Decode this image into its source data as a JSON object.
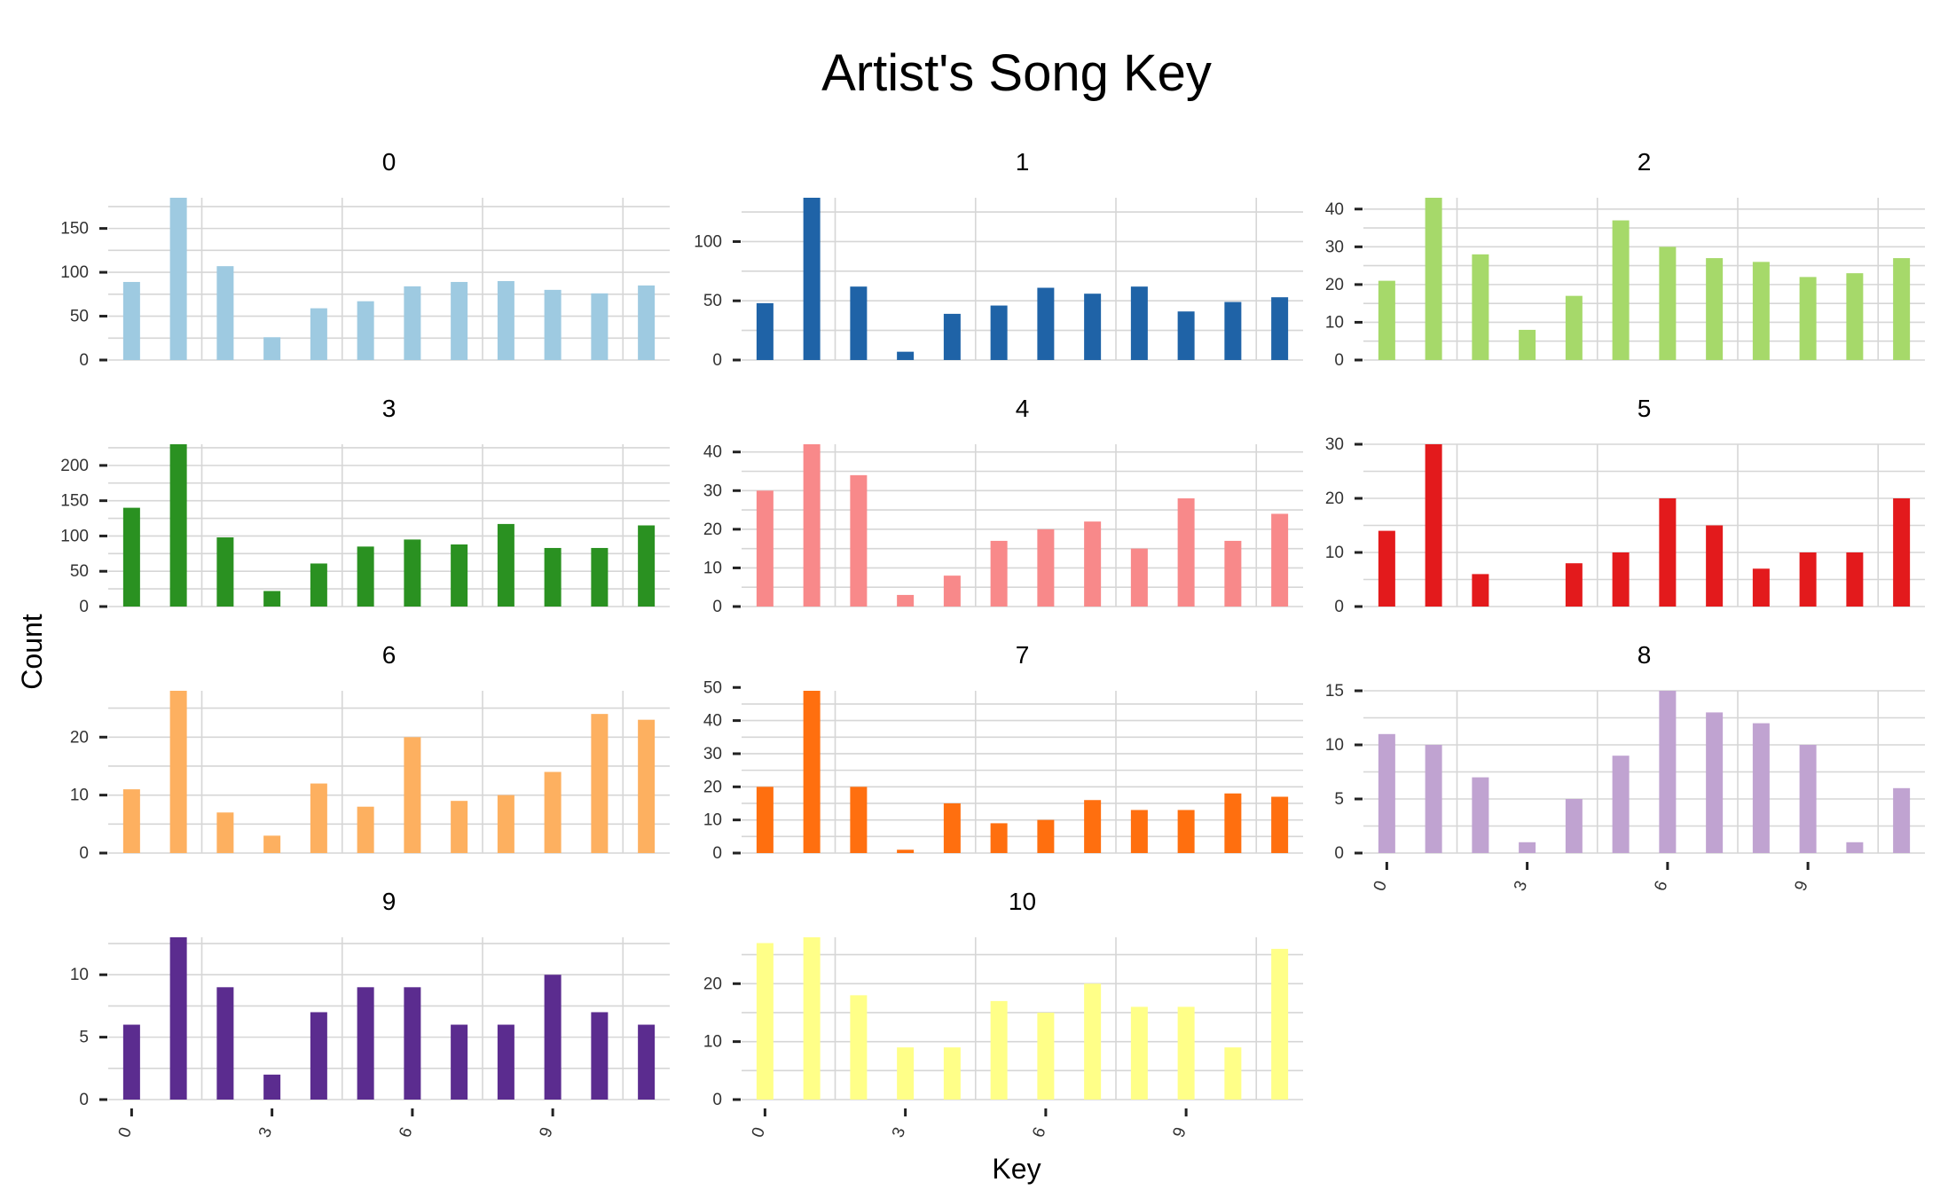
{
  "chart_data": {
    "type": "bar",
    "title": "Artist's Song Key",
    "xlabel": "Key",
    "ylabel": "Count",
    "x_ticks": [
      0,
      3,
      6,
      9
    ],
    "x_range": [
      -0.5,
      11.5
    ],
    "grid": true,
    "legend": "none",
    "categories": [
      0,
      1,
      2,
      3,
      4,
      5,
      6,
      7,
      8,
      9,
      10,
      11
    ],
    "panels": [
      {
        "name": "0",
        "color": "#9ecae1",
        "ylim": [
          0,
          185
        ],
        "yticks": [
          0,
          50,
          100,
          150
        ],
        "values": [
          89,
          185,
          107,
          26,
          59,
          67,
          84,
          89,
          90,
          80,
          76,
          85
        ]
      },
      {
        "name": "1",
        "color": "#1f63a7",
        "ylim": [
          0,
          137
        ],
        "yticks": [
          0,
          50,
          100
        ],
        "values": [
          48,
          137,
          62,
          7,
          39,
          46,
          61,
          56,
          62,
          41,
          49,
          53
        ]
      },
      {
        "name": "2",
        "color": "#a6d96a",
        "ylim": [
          0,
          43
        ],
        "yticks": [
          0,
          10,
          20,
          30,
          40
        ],
        "values": [
          21,
          43,
          28,
          8,
          17,
          37,
          30,
          27,
          26,
          22,
          23,
          27
        ]
      },
      {
        "name": "3",
        "color": "#2a9121",
        "ylim": [
          0,
          230
        ],
        "yticks": [
          0,
          50,
          100,
          150,
          200
        ],
        "values": [
          140,
          230,
          98,
          22,
          61,
          85,
          95,
          88,
          117,
          83,
          83,
          115
        ]
      },
      {
        "name": "4",
        "color": "#f8898a",
        "ylim": [
          0,
          42
        ],
        "yticks": [
          0,
          10,
          20,
          30,
          40
        ],
        "values": [
          30,
          42,
          34,
          3,
          8,
          17,
          20,
          22,
          15,
          28,
          17,
          24
        ]
      },
      {
        "name": "5",
        "color": "#e31a1c",
        "ylim": [
          0,
          30
        ],
        "yticks": [
          0,
          10,
          20,
          30
        ],
        "values": [
          14,
          30,
          6,
          0,
          8,
          10,
          20,
          15,
          7,
          10,
          10,
          20
        ]
      },
      {
        "name": "6",
        "color": "#fdb060",
        "ylim": [
          0,
          28
        ],
        "yticks": [
          0,
          10,
          20
        ],
        "values": [
          11,
          28,
          7,
          3,
          12,
          8,
          20,
          9,
          10,
          14,
          24,
          23
        ]
      },
      {
        "name": "7",
        "color": "#ff6f0f",
        "ylim": [
          0,
          49
        ],
        "yticks": [
          0,
          10,
          20,
          30,
          40,
          50
        ],
        "values": [
          20,
          49,
          20,
          1,
          15,
          9,
          10,
          16,
          13,
          13,
          18,
          17
        ]
      },
      {
        "name": "8",
        "color": "#c0a3d1",
        "ylim": [
          0,
          15
        ],
        "yticks": [
          0,
          5,
          10,
          15
        ],
        "values": [
          11,
          10,
          7,
          1,
          5,
          9,
          15,
          13,
          12,
          10,
          1,
          6
        ]
      },
      {
        "name": "9",
        "color": "#5b2c8f",
        "ylim": [
          0,
          13
        ],
        "yticks": [
          0,
          5,
          10
        ],
        "values": [
          6,
          13,
          9,
          2,
          7,
          9,
          9,
          6,
          6,
          10,
          7,
          6
        ]
      },
      {
        "name": "10",
        "color": "#ffff88",
        "ylim": [
          0,
          28
        ],
        "yticks": [
          0,
          10,
          20
        ],
        "values": [
          27,
          28,
          18,
          9,
          9,
          17,
          15,
          20,
          16,
          16,
          9,
          26
        ]
      }
    ]
  }
}
